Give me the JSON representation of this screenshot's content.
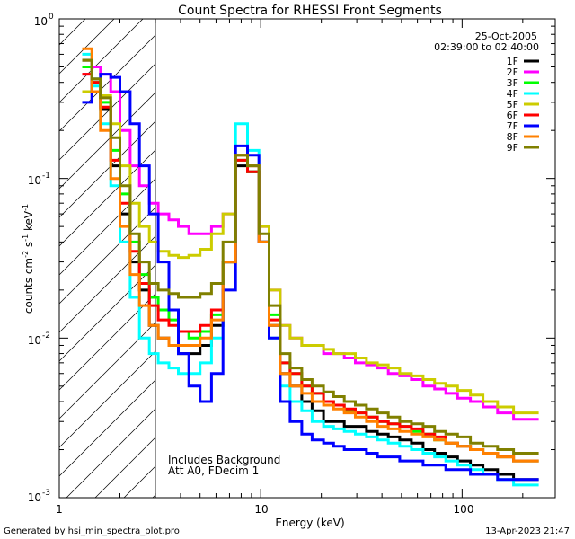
{
  "chart_data": {
    "type": "line",
    "title": "Count Spectra for RHESSI Front Segments",
    "xlabel": "Energy (keV)",
    "ylabel": "counts cm-2 s-1 keV-1",
    "ylabel_parts": {
      "a": "counts cm",
      "b": "-2",
      "c": " s",
      "d": "-1",
      "e": " keV",
      "f": "-1"
    },
    "x_scale": "log",
    "y_scale": "log",
    "xlim": [
      1,
      290
    ],
    "ylim": [
      0.001,
      1.0
    ],
    "x_ticks": [
      {
        "v": 1,
        "label": "1"
      },
      {
        "v": 10,
        "label": "10"
      },
      {
        "v": 100,
        "label": "100"
      }
    ],
    "y_ticks": [
      {
        "v": 1,
        "base": "10",
        "exp": "0"
      },
      {
        "v": 0.1,
        "base": "10",
        "exp": "-1"
      },
      {
        "v": 0.01,
        "base": "10",
        "exp": "-2"
      },
      {
        "v": 0.001,
        "base": "10",
        "exp": "-3"
      }
    ],
    "shaded_region_upper_kev": 3.0,
    "date": "25-Oct-2005",
    "time_range": "02:39:00 to 02:40:00",
    "annotation_line1": "Includes Background",
    "annotation_line2": "Att A0, FDecim 1",
    "series": [
      {
        "name": "1F",
        "color": "#000000",
        "values": [
          0.55,
          0.4,
          0.27,
          0.12,
          0.06,
          0.03,
          0.02,
          0.012,
          0.01,
          0.009,
          0.008,
          0.008,
          0.009,
          0.012,
          0.03,
          0.12,
          0.11,
          0.04,
          0.012,
          0.006,
          0.005,
          0.004,
          0.0035,
          0.003,
          0.003,
          0.0028,
          0.0028,
          0.0026,
          0.0025,
          0.0024,
          0.0023,
          0.0022,
          0.002,
          0.0019,
          0.0018,
          0.0017,
          0.0016,
          0.0015,
          0.0014,
          0.0013
        ]
      },
      {
        "name": "2F",
        "color": "#ff00ff",
        "values": [
          0.45,
          0.5,
          0.45,
          0.35,
          0.2,
          0.12,
          0.09,
          0.07,
          0.06,
          0.055,
          0.05,
          0.045,
          0.045,
          0.05,
          0.06,
          0.14,
          0.12,
          0.05,
          0.02,
          0.012,
          0.01,
          0.009,
          0.009,
          0.008,
          0.008,
          0.0075,
          0.007,
          0.0068,
          0.0065,
          0.006,
          0.0058,
          0.0055,
          0.005,
          0.0048,
          0.0045,
          0.0042,
          0.004,
          0.0037,
          0.0034,
          0.0031
        ]
      },
      {
        "name": "3F",
        "color": "#00ff00",
        "values": [
          0.5,
          0.42,
          0.3,
          0.15,
          0.08,
          0.04,
          0.025,
          0.018,
          0.015,
          0.013,
          0.011,
          0.01,
          0.011,
          0.014,
          0.03,
          0.13,
          0.11,
          0.04,
          0.014,
          0.007,
          0.006,
          0.005,
          0.0045,
          0.004,
          0.0038,
          0.0035,
          0.0034,
          0.0032,
          0.003,
          0.0029,
          0.0028,
          0.0026,
          0.0025,
          0.0023,
          0.0022,
          0.0021,
          0.002,
          0.0019,
          0.0018,
          0.0017
        ]
      },
      {
        "name": "4F",
        "color": "#00ffff",
        "values": [
          0.6,
          0.38,
          0.22,
          0.09,
          0.04,
          0.018,
          0.01,
          0.008,
          0.007,
          0.0065,
          0.006,
          0.006,
          0.007,
          0.01,
          0.03,
          0.22,
          0.15,
          0.04,
          0.01,
          0.005,
          0.004,
          0.0035,
          0.003,
          0.0028,
          0.0027,
          0.0026,
          0.0025,
          0.0024,
          0.0023,
          0.0022,
          0.0021,
          0.002,
          0.0019,
          0.0018,
          0.0017,
          0.0016,
          0.0015,
          0.0014,
          0.0013,
          0.0012
        ]
      },
      {
        "name": "5F",
        "color": "#cccc00",
        "values": [
          0.35,
          0.4,
          0.33,
          0.22,
          0.12,
          0.07,
          0.05,
          0.04,
          0.035,
          0.033,
          0.032,
          0.033,
          0.036,
          0.045,
          0.06,
          0.14,
          0.12,
          0.05,
          0.02,
          0.012,
          0.01,
          0.009,
          0.009,
          0.0085,
          0.008,
          0.008,
          0.0075,
          0.007,
          0.0068,
          0.0065,
          0.006,
          0.0058,
          0.0055,
          0.0052,
          0.005,
          0.0047,
          0.0044,
          0.004,
          0.0037,
          0.0034
        ]
      },
      {
        "name": "6F",
        "color": "#ff0000",
        "values": [
          0.45,
          0.4,
          0.28,
          0.13,
          0.07,
          0.035,
          0.022,
          0.016,
          0.013,
          0.012,
          0.011,
          0.011,
          0.012,
          0.015,
          0.03,
          0.13,
          0.11,
          0.04,
          0.013,
          0.007,
          0.006,
          0.005,
          0.0045,
          0.004,
          0.0038,
          0.0036,
          0.0034,
          0.0032,
          0.003,
          0.0029,
          0.0028,
          0.0027,
          0.0025,
          0.0024,
          0.0022,
          0.0021,
          0.002,
          0.0019,
          0.0018,
          0.0017
        ]
      },
      {
        "name": "7F",
        "color": "#0000ff",
        "values": [
          0.3,
          0.42,
          0.45,
          0.43,
          0.35,
          0.22,
          0.12,
          0.06,
          0.03,
          0.015,
          0.008,
          0.005,
          0.004,
          0.006,
          0.02,
          0.16,
          0.14,
          0.04,
          0.01,
          0.004,
          0.003,
          0.0025,
          0.0023,
          0.0022,
          0.0021,
          0.002,
          0.002,
          0.0019,
          0.0018,
          0.0018,
          0.0017,
          0.0017,
          0.0016,
          0.0016,
          0.0015,
          0.0015,
          0.0014,
          0.0014,
          0.0013,
          0.0013
        ]
      },
      {
        "name": "8F",
        "color": "#ff8000",
        "values": [
          0.65,
          0.35,
          0.2,
          0.1,
          0.05,
          0.025,
          0.016,
          0.012,
          0.01,
          0.009,
          0.009,
          0.009,
          0.01,
          0.013,
          0.03,
          0.14,
          0.12,
          0.04,
          0.012,
          0.006,
          0.005,
          0.0045,
          0.004,
          0.0038,
          0.0036,
          0.0034,
          0.0032,
          0.003,
          0.0028,
          0.0027,
          0.0026,
          0.0025,
          0.0024,
          0.0023,
          0.0022,
          0.0021,
          0.002,
          0.0019,
          0.0018,
          0.0017
        ]
      },
      {
        "name": "9F",
        "color": "#808000",
        "values": [
          0.55,
          0.42,
          0.32,
          0.18,
          0.09,
          0.045,
          0.03,
          0.022,
          0.02,
          0.019,
          0.018,
          0.018,
          0.019,
          0.022,
          0.04,
          0.14,
          0.12,
          0.045,
          0.016,
          0.008,
          0.0065,
          0.0055,
          0.005,
          0.0046,
          0.0043,
          0.004,
          0.0038,
          0.0036,
          0.0034,
          0.0032,
          0.003,
          0.0029,
          0.0028,
          0.0026,
          0.0025,
          0.0024,
          0.0022,
          0.0021,
          0.002,
          0.0019
        ]
      }
    ],
    "x_edges_kev": [
      1.3,
      1.45,
      1.6,
      1.8,
      2.0,
      2.25,
      2.5,
      2.8,
      3.1,
      3.5,
      3.9,
      4.4,
      5.0,
      5.7,
      6.5,
      7.5,
      8.6,
      9.8,
      11.0,
      12.5,
      14.0,
      16.0,
      18.0,
      20.5,
      23.0,
      26.0,
      29.5,
      33.5,
      38.0,
      43.0,
      49.0,
      56.0,
      64.0,
      73.0,
      83.0,
      95.0,
      110.0,
      127.0,
      150.0,
      180.0,
      240.0
    ]
  },
  "footer": {
    "generated_by": "Generated by hsi_min_spectra_plot.pro",
    "timestamp": "13-Apr-2023 21:47"
  }
}
